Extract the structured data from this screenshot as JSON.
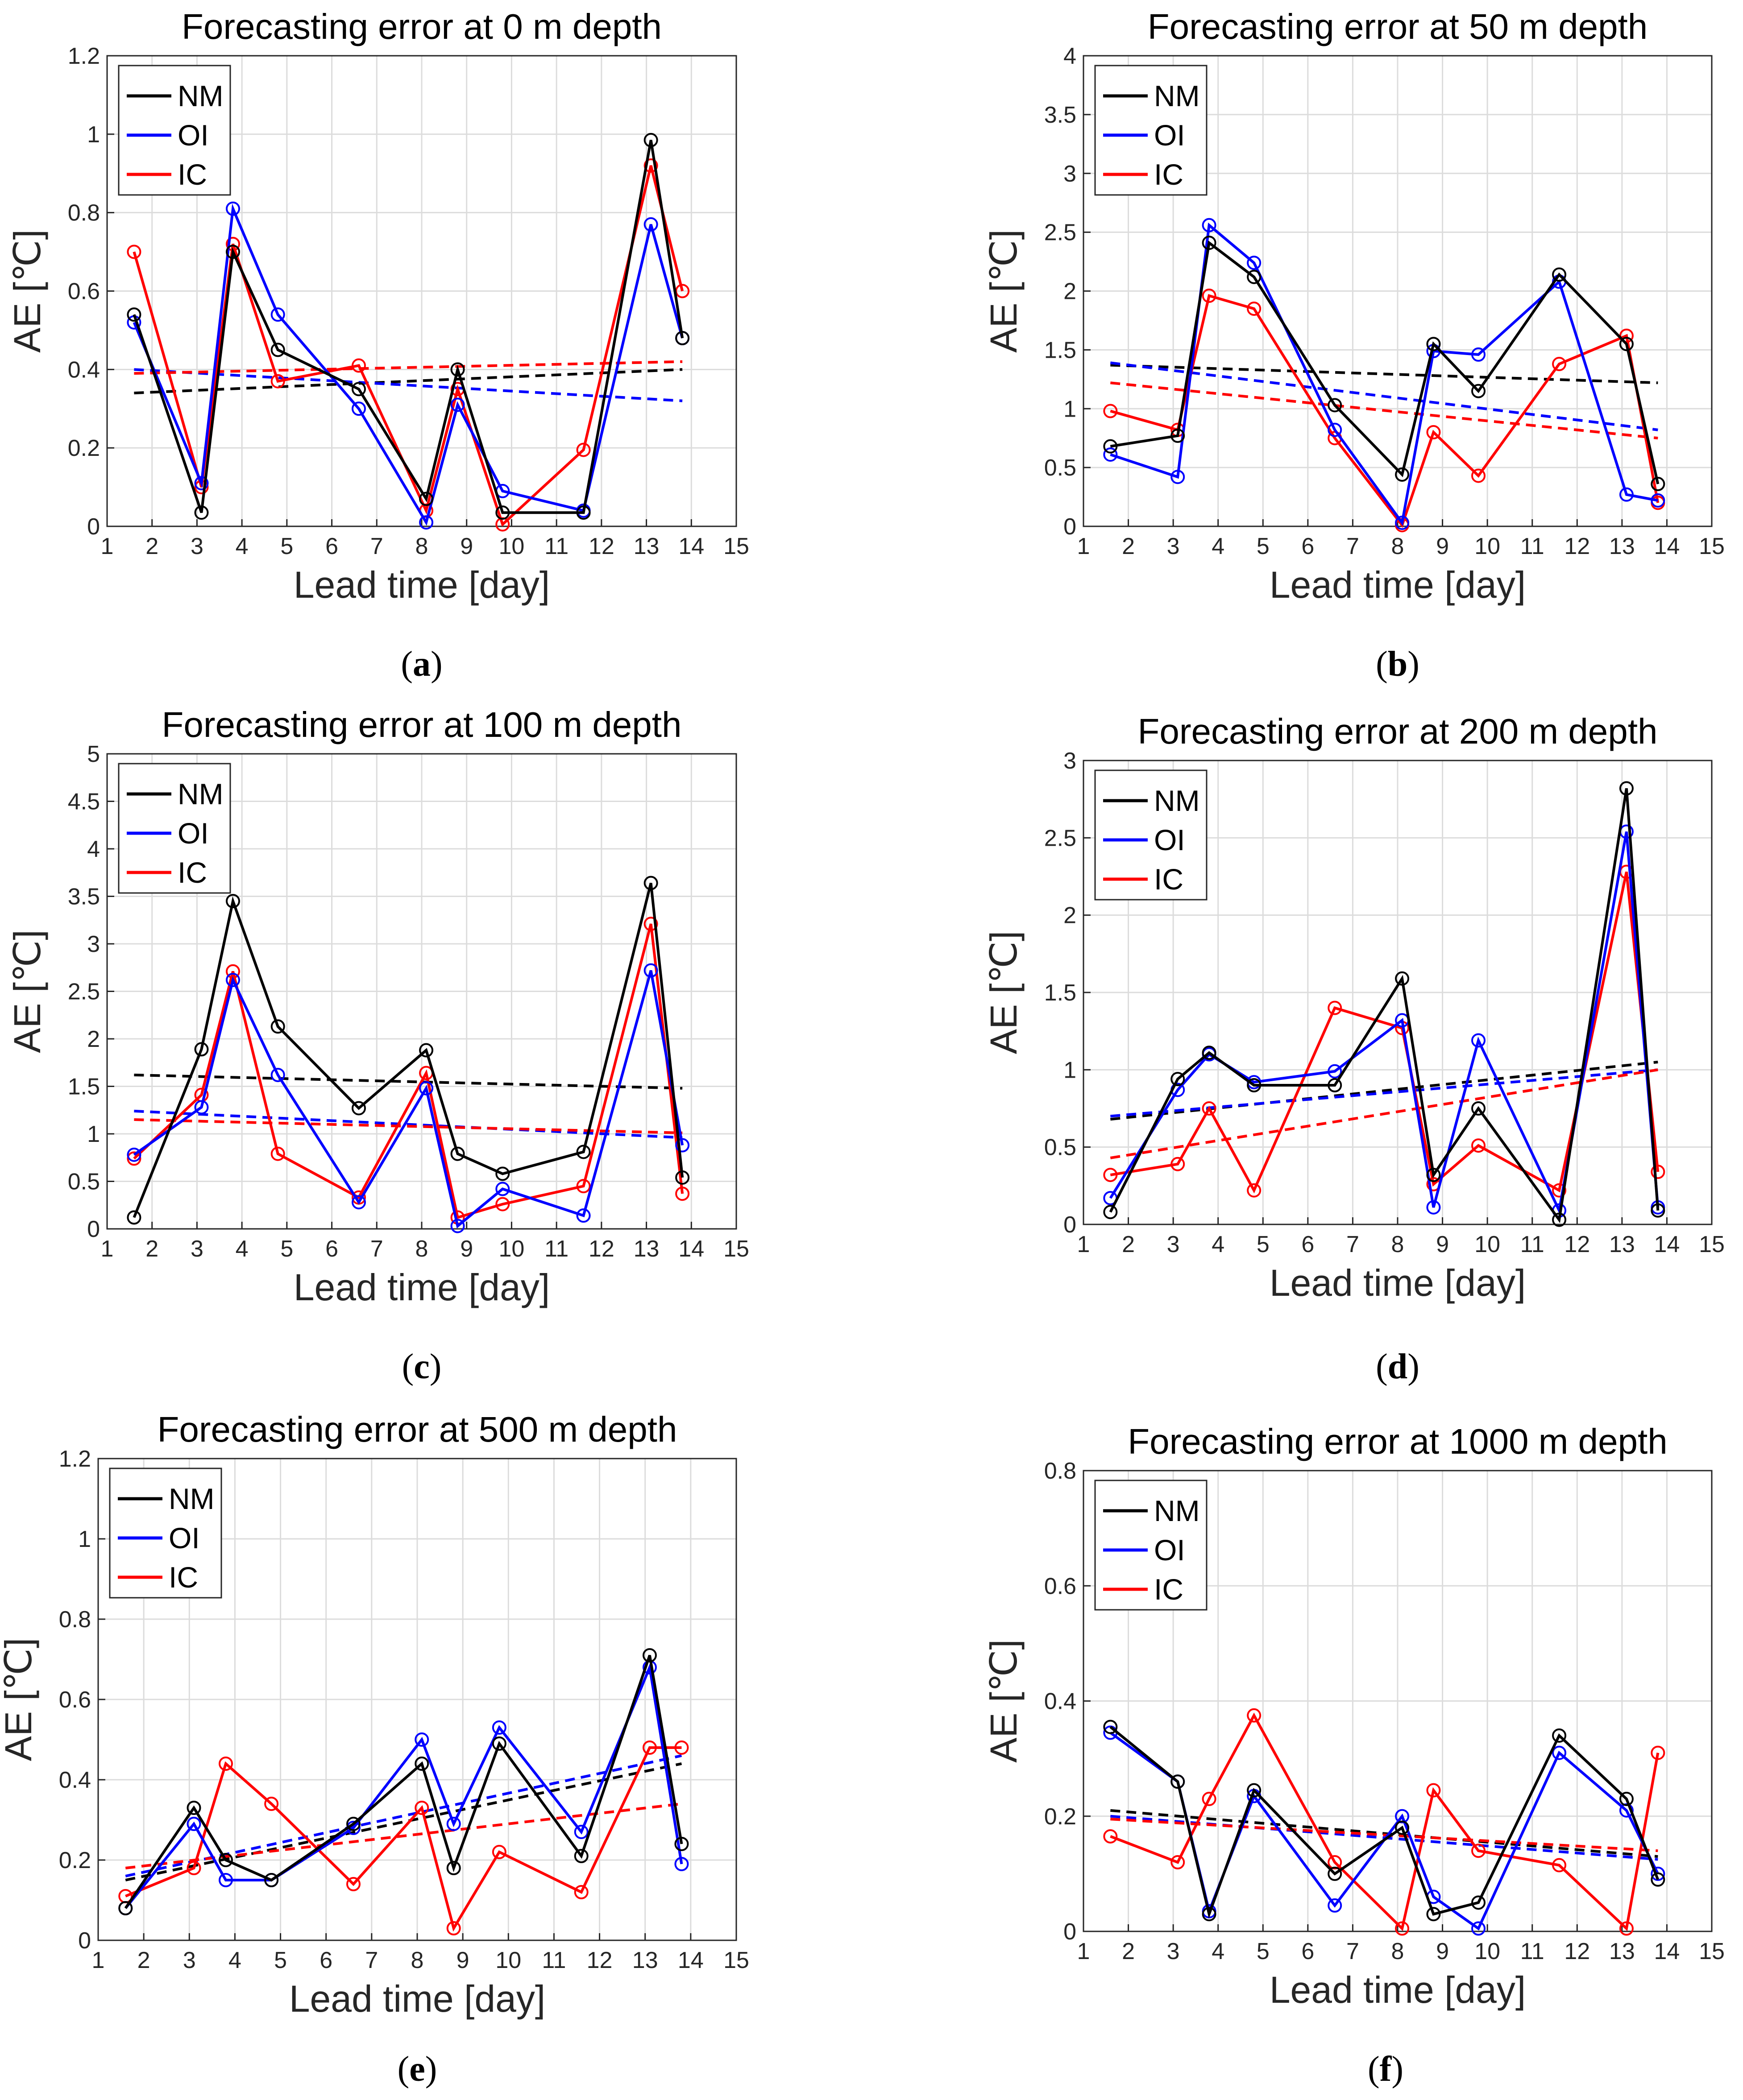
{
  "figure": {
    "colors": {
      "NM": "#000000",
      "OI": "#0000ff",
      "IC": "#ff0000",
      "grid": "#dcdcdc"
    }
  },
  "chart_data": [
    {
      "type": "line",
      "panel": "(a)",
      "title": "Forecasting error at 0 m depth",
      "xlabel": "Lead time [day]",
      "ylabel": "AE [℃]",
      "xlim": [
        1,
        15
      ],
      "ylim": [
        0,
        1.2
      ],
      "xticks": [
        1,
        2,
        3,
        4,
        5,
        6,
        7,
        8,
        9,
        10,
        11,
        12,
        13,
        14,
        15
      ],
      "yticks": [
        0,
        0.2,
        0.4,
        0.6,
        0.8,
        1,
        1.2
      ],
      "ytick_labels": [
        "0",
        "0.2",
        "0.4",
        "0.6",
        "0.8",
        "1",
        "1.2"
      ],
      "legend": [
        "NM",
        "OI",
        "IC"
      ],
      "grid": true,
      "x": [
        1.6,
        3.1,
        3.8,
        4.8,
        6.6,
        8.1,
        8.8,
        9.8,
        11.6,
        13.1,
        13.8
      ],
      "series": [
        {
          "name": "NM",
          "color": "#000000",
          "values": [
            0.54,
            0.035,
            0.7,
            0.45,
            0.35,
            0.07,
            0.4,
            0.035,
            0.035,
            0.985,
            0.48
          ],
          "trend": [
            0.34,
            0.4
          ]
        },
        {
          "name": "OI",
          "color": "#0000ff",
          "values": [
            0.52,
            0.11,
            0.81,
            0.54,
            0.3,
            0.01,
            0.31,
            0.09,
            0.04,
            0.77,
            0.48
          ],
          "trend": [
            0.4,
            0.32
          ]
        },
        {
          "name": "IC",
          "color": "#ff0000",
          "values": [
            0.7,
            0.1,
            0.72,
            0.37,
            0.41,
            0.04,
            0.35,
            0.005,
            0.195,
            0.92,
            0.6
          ],
          "trend": [
            0.39,
            0.42
          ]
        }
      ]
    },
    {
      "type": "line",
      "panel": "(b)",
      "title": "Forecasting error at 50 m depth",
      "xlabel": "Lead time [day]",
      "ylabel": "AE [℃]",
      "xlim": [
        1,
        15
      ],
      "ylim": [
        0,
        4
      ],
      "xticks": [
        1,
        2,
        3,
        4,
        5,
        6,
        7,
        8,
        9,
        10,
        11,
        12,
        13,
        14,
        15
      ],
      "yticks": [
        0,
        0.5,
        1,
        1.5,
        2,
        2.5,
        3,
        3.5,
        4
      ],
      "ytick_labels": [
        "0",
        "0.5",
        "1",
        "1.5",
        "2",
        "2.5",
        "3",
        "3.5",
        "4"
      ],
      "legend": [
        "NM",
        "OI",
        "IC"
      ],
      "grid": true,
      "x": [
        1.6,
        3.1,
        3.8,
        4.8,
        6.6,
        8.1,
        8.8,
        9.8,
        11.6,
        13.1,
        13.8
      ],
      "series": [
        {
          "name": "NM",
          "color": "#000000",
          "values": [
            0.68,
            0.77,
            2.41,
            2.12,
            1.03,
            0.44,
            1.55,
            1.15,
            2.14,
            1.55,
            0.36
          ],
          "trend": [
            1.37,
            1.22
          ]
        },
        {
          "name": "OI",
          "color": "#0000ff",
          "values": [
            0.61,
            0.42,
            2.56,
            2.24,
            0.82,
            0.03,
            1.49,
            1.46,
            2.08,
            0.27,
            0.22
          ],
          "trend": [
            1.39,
            0.82
          ]
        },
        {
          "name": "IC",
          "color": "#ff0000",
          "values": [
            0.98,
            0.82,
            1.96,
            1.85,
            0.75,
            0.01,
            0.8,
            0.43,
            1.38,
            1.62,
            0.2
          ],
          "trend": [
            1.22,
            0.75
          ]
        }
      ]
    },
    {
      "type": "line",
      "panel": "(c)",
      "title": "Forecasting error at 100 m depth",
      "xlabel": "Lead time [day]",
      "ylabel": "AE [℃]",
      "xlim": [
        1,
        15
      ],
      "ylim": [
        0,
        5
      ],
      "xticks": [
        1,
        2,
        3,
        4,
        5,
        6,
        7,
        8,
        9,
        10,
        11,
        12,
        13,
        14,
        15
      ],
      "yticks": [
        0,
        0.5,
        1,
        1.5,
        2,
        2.5,
        3,
        3.5,
        4,
        4.5,
        5
      ],
      "ytick_labels": [
        "0",
        "0.5",
        "1",
        "1.5",
        "2",
        "2.5",
        "3",
        "3.5",
        "4",
        "4.5",
        "5"
      ],
      "legend": [
        "NM",
        "OI",
        "IC"
      ],
      "grid": true,
      "x": [
        1.6,
        3.1,
        3.8,
        4.8,
        6.6,
        8.1,
        8.8,
        9.8,
        11.6,
        13.1,
        13.8
      ],
      "series": [
        {
          "name": "NM",
          "color": "#000000",
          "values": [
            0.12,
            1.89,
            3.45,
            2.13,
            1.27,
            1.88,
            0.79,
            0.58,
            0.81,
            3.64,
            0.54
          ],
          "trend": [
            1.62,
            1.48
          ]
        },
        {
          "name": "OI",
          "color": "#0000ff",
          "values": [
            0.78,
            1.28,
            2.62,
            1.62,
            0.28,
            1.48,
            0.03,
            0.42,
            0.14,
            2.72,
            0.88
          ],
          "trend": [
            1.24,
            0.96
          ]
        },
        {
          "name": "IC",
          "color": "#ff0000",
          "values": [
            0.74,
            1.41,
            2.71,
            0.79,
            0.33,
            1.64,
            0.12,
            0.26,
            0.45,
            3.21,
            0.37
          ],
          "trend": [
            1.15,
            1.01
          ]
        }
      ]
    },
    {
      "type": "line",
      "panel": "(d)",
      "title": "Forecasting error at 200 m depth",
      "xlabel": "Lead time [day]",
      "ylabel": "AE [℃]",
      "xlim": [
        1,
        15
      ],
      "ylim": [
        0,
        3
      ],
      "xticks": [
        1,
        2,
        3,
        4,
        5,
        6,
        7,
        8,
        9,
        10,
        11,
        12,
        13,
        14,
        15
      ],
      "yticks": [
        0,
        0.5,
        1,
        1.5,
        2,
        2.5,
        3
      ],
      "ytick_labels": [
        "0",
        "0.5",
        "1",
        "1.5",
        "2",
        "2.5",
        "3"
      ],
      "legend": [
        "NM",
        "OI",
        "IC"
      ],
      "grid": true,
      "x": [
        1.6,
        3.1,
        3.8,
        4.8,
        6.6,
        8.1,
        8.8,
        9.8,
        11.6,
        13.1,
        13.8
      ],
      "series": [
        {
          "name": "NM",
          "color": "#000000",
          "values": [
            0.08,
            0.94,
            1.11,
            0.9,
            0.9,
            1.59,
            0.32,
            0.75,
            0.03,
            2.82,
            0.09
          ],
          "trend": [
            0.68,
            1.05
          ]
        },
        {
          "name": "OI",
          "color": "#0000ff",
          "values": [
            0.17,
            0.87,
            1.1,
            0.92,
            0.99,
            1.32,
            0.11,
            1.19,
            0.09,
            2.54,
            0.11
          ],
          "trend": [
            0.7,
            1.0
          ]
        },
        {
          "name": "IC",
          "color": "#ff0000",
          "values": [
            0.32,
            0.39,
            0.75,
            0.22,
            1.4,
            1.27,
            0.26,
            0.51,
            0.22,
            2.28,
            0.34
          ],
          "trend": [
            0.43,
            1.0
          ]
        }
      ]
    },
    {
      "type": "line",
      "panel": "(e)",
      "title": "Forecasting error at 500 m depth",
      "xlabel": "Lead time [day]",
      "ylabel": "AE [℃]",
      "xlim": [
        1,
        15
      ],
      "ylim": [
        0,
        1.2
      ],
      "xticks": [
        1,
        2,
        3,
        4,
        5,
        6,
        7,
        8,
        9,
        10,
        11,
        12,
        13,
        14,
        15
      ],
      "yticks": [
        0,
        0.2,
        0.4,
        0.6,
        0.8,
        1,
        1.2
      ],
      "ytick_labels": [
        "0",
        "0.2",
        "0.4",
        "0.6",
        "0.8",
        "1",
        "1.2"
      ],
      "legend": [
        "NM",
        "OI",
        "IC"
      ],
      "grid": true,
      "x": [
        1.6,
        3.1,
        3.8,
        4.8,
        6.6,
        8.1,
        8.8,
        9.8,
        11.6,
        13.1,
        13.8
      ],
      "series": [
        {
          "name": "NM",
          "color": "#000000",
          "values": [
            0.08,
            0.33,
            0.2,
            0.15,
            0.29,
            0.44,
            0.18,
            0.49,
            0.21,
            0.71,
            0.24
          ],
          "trend": [
            0.15,
            0.44
          ]
        },
        {
          "name": "OI",
          "color": "#0000ff",
          "values": [
            0.08,
            0.29,
            0.15,
            0.15,
            0.28,
            0.5,
            0.29,
            0.53,
            0.27,
            0.68,
            0.19
          ],
          "trend": [
            0.16,
            0.46
          ]
        },
        {
          "name": "IC",
          "color": "#ff0000",
          "values": [
            0.11,
            0.18,
            0.44,
            0.34,
            0.14,
            0.33,
            0.03,
            0.22,
            0.12,
            0.48,
            0.48
          ],
          "trend": [
            0.18,
            0.34
          ]
        }
      ]
    },
    {
      "type": "line",
      "panel": "(f)",
      "title": "Forecasting error at 1000 m depth",
      "xlabel": "Lead time [day]",
      "ylabel": "AE [℃]",
      "xlim": [
        1,
        15
      ],
      "ylim": [
        0,
        0.8
      ],
      "xticks": [
        1,
        2,
        3,
        4,
        5,
        6,
        7,
        8,
        9,
        10,
        11,
        12,
        13,
        14,
        15
      ],
      "yticks": [
        0,
        0.2,
        0.4,
        0.6,
        0.8
      ],
      "ytick_labels": [
        "0",
        "0.2",
        "0.4",
        "0.6",
        "0.8"
      ],
      "legend": [
        "NM",
        "OI",
        "IC"
      ],
      "grid": true,
      "x": [
        1.6,
        3.1,
        3.8,
        4.8,
        6.6,
        8.1,
        8.8,
        9.8,
        11.6,
        13.1,
        13.8
      ],
      "series": [
        {
          "name": "NM",
          "color": "#000000",
          "values": [
            0.355,
            0.26,
            0.03,
            0.245,
            0.1,
            0.18,
            0.03,
            0.05,
            0.34,
            0.23,
            0.09
          ],
          "trend": [
            0.21,
            0.13
          ]
        },
        {
          "name": "OI",
          "color": "#0000ff",
          "values": [
            0.345,
            0.26,
            0.035,
            0.235,
            0.045,
            0.2,
            0.06,
            0.005,
            0.31,
            0.21,
            0.1
          ],
          "trend": [
            0.2,
            0.125
          ]
        },
        {
          "name": "IC",
          "color": "#ff0000",
          "values": [
            0.165,
            0.12,
            0.23,
            0.375,
            0.12,
            0.005,
            0.245,
            0.14,
            0.115,
            0.005,
            0.31
          ],
          "trend": [
            0.195,
            0.14
          ]
        }
      ]
    }
  ]
}
